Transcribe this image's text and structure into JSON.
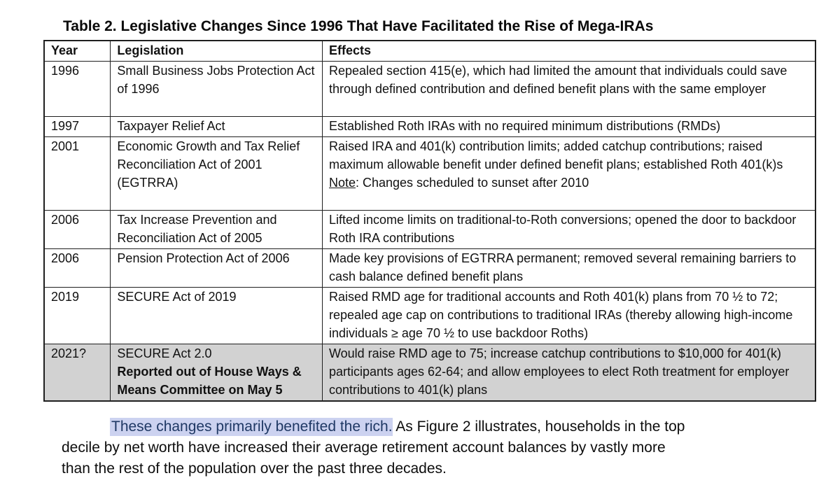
{
  "document": {
    "title": "Table 2. Legislative Changes Since 1996 That Have Facilitated the Rise of Mega-IRAs"
  },
  "table": {
    "headers": {
      "year": "Year",
      "legislation": "Legislation",
      "effects": "Effects"
    },
    "rows": [
      {
        "year": "1996",
        "legislation": "Small Business Jobs Protection Act of 1996",
        "effects": "Repealed section 415(e), which had limited the amount that individuals could save through defined contribution and defined benefit plans with the same employer"
      },
      {
        "year": "1997",
        "legislation": "Taxpayer Relief Act",
        "effects": "Established Roth IRAs with no required minimum distributions (RMDs)"
      },
      {
        "year": "2001",
        "legislation": "Economic Growth and Tax Relief Reconciliation Act of 2001 (EGTRRA)",
        "effects": "Raised IRA and 401(k) contribution limits; added catchup contributions; raised maximum allowable benefit under defined benefit plans; established Roth 401(k)s",
        "note_label": "Note",
        "note_rest": ": Changes scheduled to sunset after 2010"
      },
      {
        "year": "2006",
        "legislation": "Tax Increase Prevention and Reconciliation Act of 2005",
        "effects": "Lifted income limits on traditional-to-Roth conversions; opened the door to backdoor Roth IRA contributions"
      },
      {
        "year": "2006",
        "legislation": "Pension Protection Act of 2006",
        "effects": "Made key provisions of EGTRRA permanent; removed several remaining barriers to cash balance defined benefit plans"
      },
      {
        "year": "2019",
        "legislation": "SECURE Act of 2019",
        "effects": "Raised RMD age for traditional accounts and Roth 401(k) plans from 70 ½ to 72; repealed age cap on contributions to traditional IRAs (thereby allowing high-income individuals ≥ age 70 ½ to use backdoor Roths)"
      },
      {
        "year": "2021?",
        "legislation": "SECURE Act 2.0",
        "legislation_bold": "Reported out of House Ways & Means Committee on May 5",
        "effects": "Would raise RMD age to 75; increase catchup contributions to $10,000 for 401(k) participants ages 62-64; and allow employees to elect Roth treatment for employer contributions to 401(k) plans"
      }
    ]
  },
  "paragraph": {
    "line1_highlight": "These changes primarily benefited the rich.",
    "line1_rest": " As Figure 2 illustrates, households in the top",
    "line2": "decile by net worth have increased their average retirement account balances by vastly more",
    "line3": "than the rest of the population over the past three decades."
  },
  "colors": {
    "row_shading": "#d2d2d2",
    "highlight_bg": "#ccd2f0",
    "highlight_text": "#1f3864",
    "border": "#1f1f1f"
  }
}
